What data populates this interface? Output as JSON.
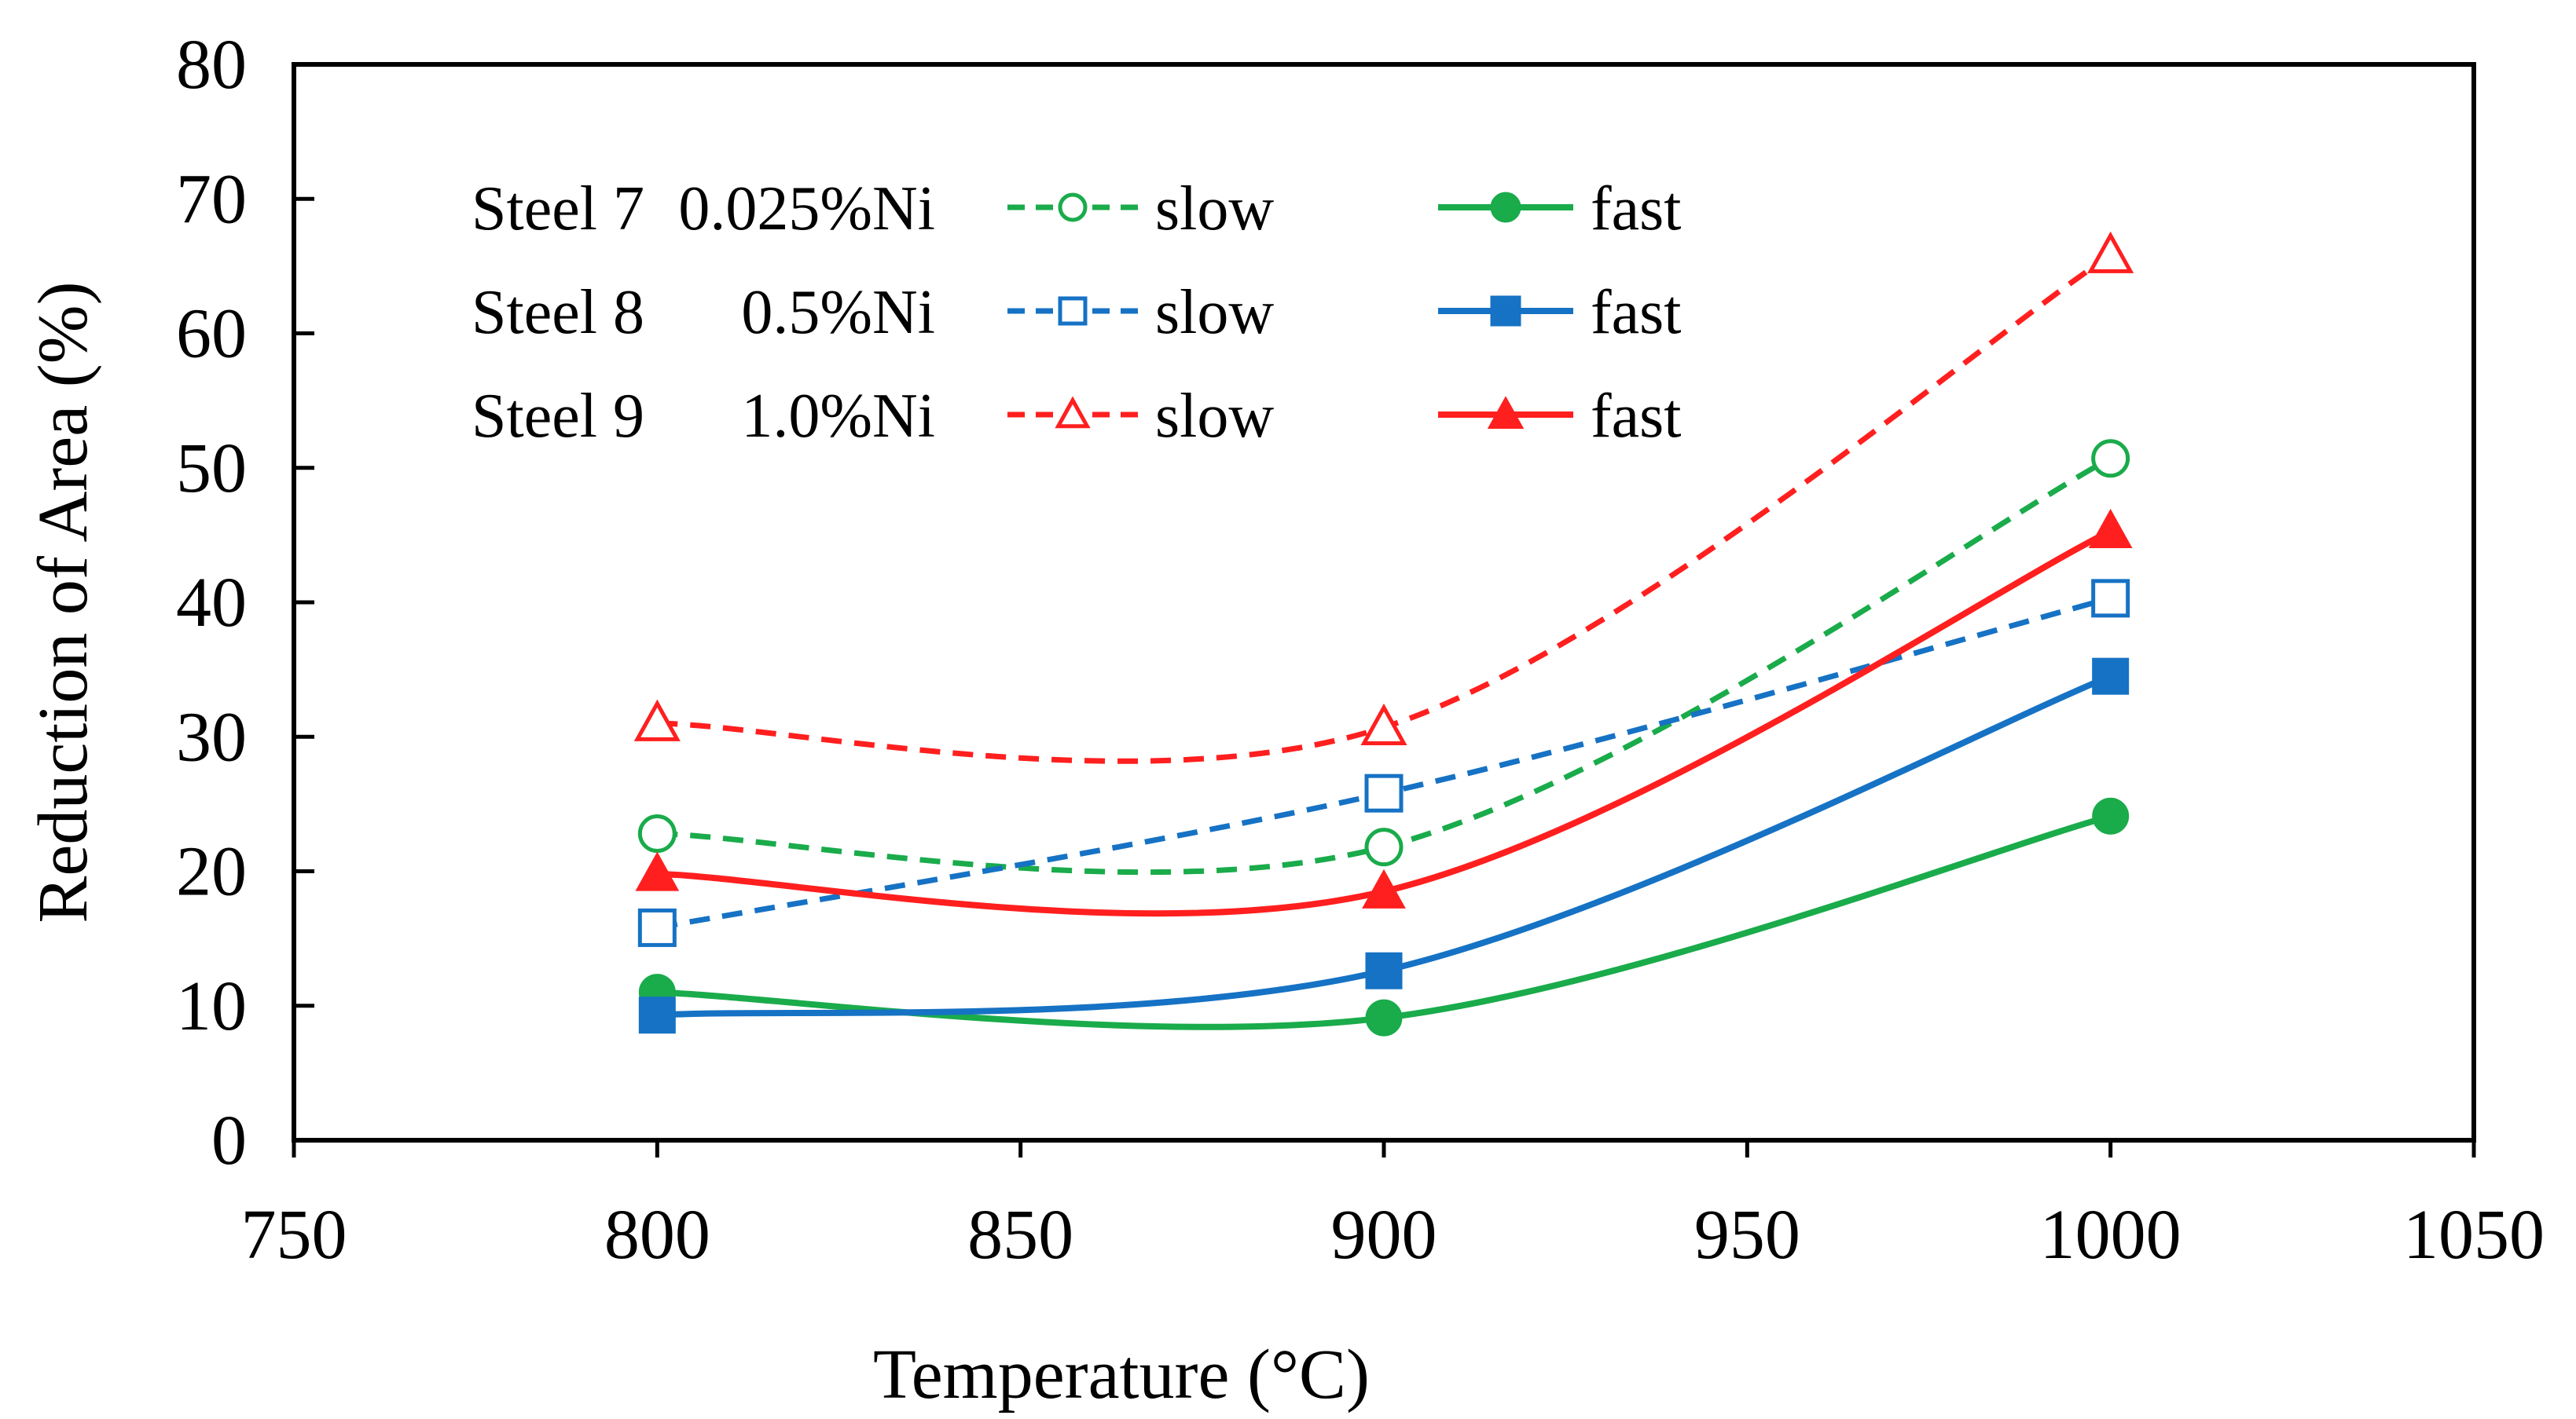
{
  "chart_data": {
    "type": "line",
    "title": "",
    "xlabel": "Temperature (°C)",
    "ylabel": "Reduction of Area (%)",
    "xlim": [
      750,
      1050
    ],
    "ylim": [
      0,
      80
    ],
    "xticks": [
      750,
      800,
      850,
      900,
      950,
      1000,
      1050
    ],
    "yticks": [
      0,
      10,
      20,
      30,
      40,
      50,
      60,
      70,
      80
    ],
    "grid": false,
    "legend_position": "top-left",
    "legend_rows": [
      {
        "steel": "Steel 7",
        "ni": "0.025%Ni",
        "slow_label": "slow",
        "fast_label": "fast"
      },
      {
        "steel": "Steel 8",
        "ni": "0.5%Ni",
        "slow_label": "slow",
        "fast_label": "fast"
      },
      {
        "steel": "Steel 9",
        "ni": "1.0%Ni",
        "slow_label": "slow",
        "fast_label": "fast"
      }
    ],
    "x": [
      800,
      900,
      1000
    ],
    "series": [
      {
        "name": "Steel 7 0.025%Ni slow",
        "steel": "Steel 7",
        "rate": "slow",
        "color": "#1aab4b",
        "marker": "circle",
        "filled": false,
        "dashed": true,
        "values": [
          22.8,
          21.8,
          50.7
        ]
      },
      {
        "name": "Steel 7 0.025%Ni fast",
        "steel": "Steel 7",
        "rate": "fast",
        "color": "#1aab4b",
        "marker": "circle",
        "filled": true,
        "dashed": false,
        "values": [
          11.0,
          9.1,
          24.1
        ]
      },
      {
        "name": "Steel 8 0.5%Ni slow",
        "steel": "Steel 8",
        "rate": "slow",
        "color": "#1672c4",
        "marker": "square",
        "filled": false,
        "dashed": true,
        "values": [
          15.8,
          25.8,
          40.3
        ]
      },
      {
        "name": "Steel 8 0.5%Ni fast",
        "steel": "Steel 8",
        "rate": "fast",
        "color": "#1672c4",
        "marker": "square",
        "filled": true,
        "dashed": false,
        "values": [
          9.3,
          12.6,
          34.5
        ]
      },
      {
        "name": "Steel 9 1.0%Ni slow",
        "steel": "Steel 9",
        "rate": "slow",
        "color": "#ff1f1f",
        "marker": "triangle",
        "filled": false,
        "dashed": true,
        "values": [
          31.0,
          30.7,
          65.8
        ]
      },
      {
        "name": "Steel 9 1.0%Ni fast",
        "steel": "Steel 9",
        "rate": "fast",
        "color": "#ff1f1f",
        "marker": "triangle",
        "filled": true,
        "dashed": false,
        "values": [
          19.8,
          18.5,
          45.3
        ]
      }
    ]
  }
}
